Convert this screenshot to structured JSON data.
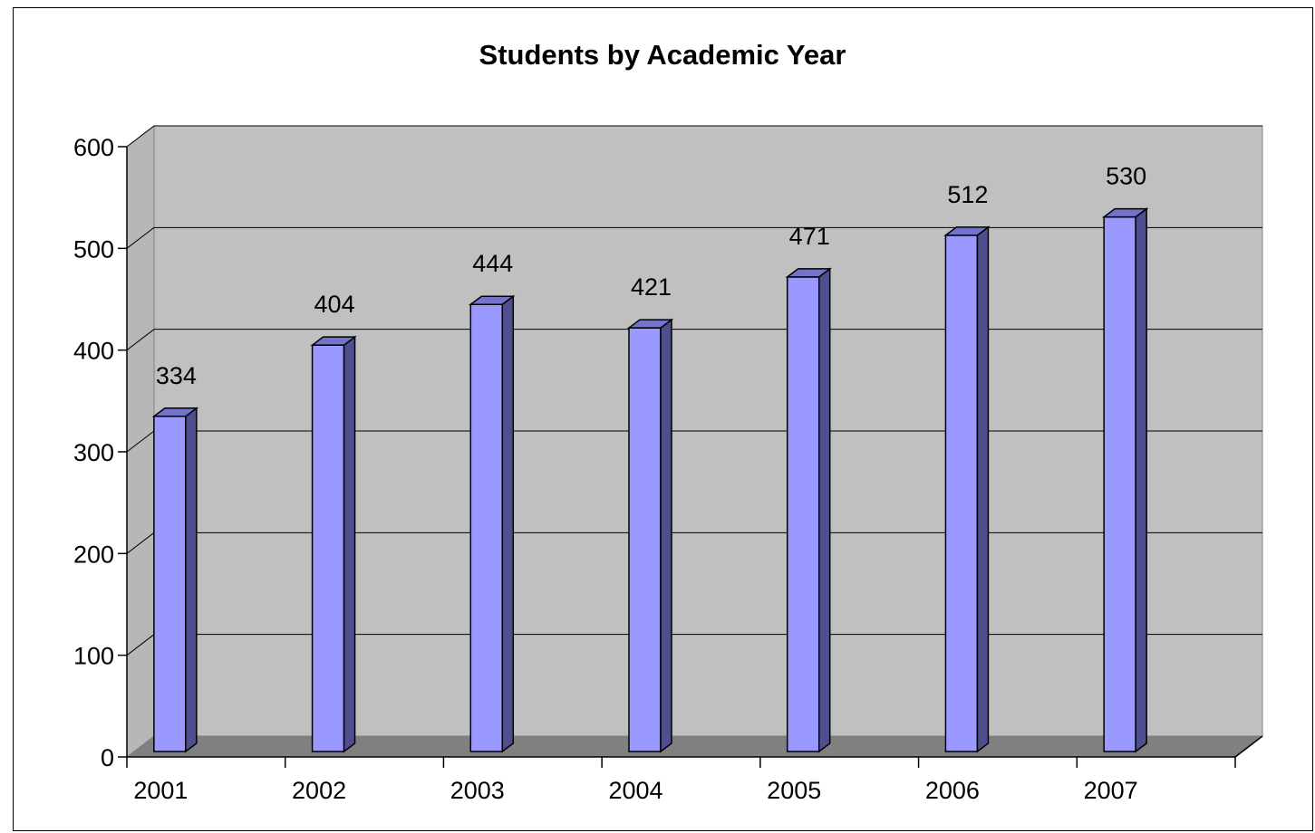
{
  "chart_data": {
    "type": "bar",
    "title": "Students by Academic Year",
    "xlabel": "",
    "ylabel": "",
    "categories": [
      "2001",
      "2002",
      "2003",
      "2004",
      "2005",
      "2006",
      "2007"
    ],
    "values": [
      334,
      404,
      444,
      421,
      471,
      512,
      530
    ],
    "ylim": [
      0,
      600
    ],
    "yticks": [
      "0",
      "100",
      "200",
      "300",
      "400",
      "500",
      "600"
    ],
    "data_labels": true,
    "grid": true,
    "legend": "none",
    "colors": {
      "bar_front": "#9999ff",
      "bar_side": "#4f4f8f",
      "bar_top": "#7373c9",
      "back_wall": "#c0c0c0",
      "side_wall": "#b7b7b7",
      "floor": "#808080",
      "gridline": "#000000"
    }
  }
}
